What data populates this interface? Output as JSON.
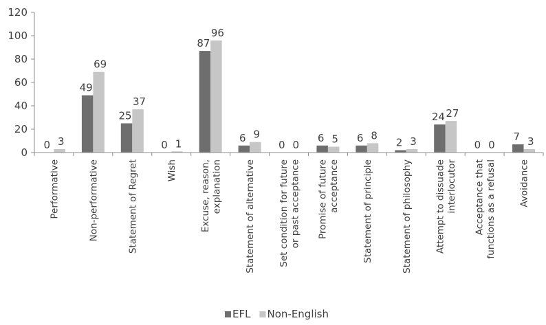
{
  "chart_data": {
    "type": "bar",
    "categories": [
      [
        "Performative"
      ],
      [
        "Non-performative"
      ],
      [
        "Statement of Regret"
      ],
      [
        "Wish"
      ],
      [
        "Excuse, reason,",
        "explanation"
      ],
      [
        "Statement of alternative"
      ],
      [
        "Set condition for future",
        "or past acceptance"
      ],
      [
        "Promise of future",
        "acceptance"
      ],
      [
        "Statement of principle"
      ],
      [
        "Statement of philosophy"
      ],
      [
        "Attempt to dissuade",
        "interlocutor"
      ],
      [
        "Acceptance that",
        "functions as a refusal"
      ],
      [
        "Avoidance"
      ]
    ],
    "series": [
      {
        "name": "EFL",
        "color": "#6e6e6e",
        "values": [
          0,
          49,
          25,
          0,
          87,
          6,
          0,
          6,
          6,
          2,
          24,
          0,
          7
        ]
      },
      {
        "name": "Non-English",
        "color": "#c6c6c6",
        "values": [
          3,
          69,
          37,
          1,
          96,
          9,
          0,
          5,
          8,
          3,
          27,
          0,
          3
        ]
      }
    ],
    "ylim": [
      0,
      120
    ],
    "yticks": [
      0,
      20,
      40,
      60,
      80,
      100,
      120
    ],
    "grid": false,
    "data_labels": true,
    "legend_position": "bottom"
  }
}
